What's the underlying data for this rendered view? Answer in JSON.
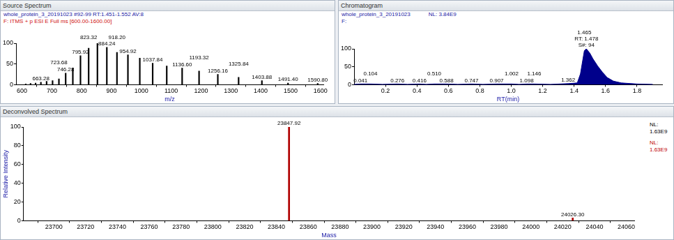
{
  "chart_data": [
    {
      "type": "bar",
      "title": "Source Spectrum",
      "subtitle": [
        [
          "whole_protein_3_20191023 #92-99 RT:1.451-1.552 AV:8"
        ],
        [
          "F: ITMS + p ESI E Full ms [600.00-1600.00]"
        ]
      ],
      "x_label": "m/z",
      "x": [
        612.5,
        628.6,
        645.5,
        663.28,
        682.4,
        702.4,
        723.68,
        746.28,
        770.3,
        795.92,
        823.32,
        852.7,
        884.24,
        918.2,
        954.92,
        994.7,
        1037.84,
        1085.0,
        1136.6,
        1193.32,
        1256.16,
        1325.84,
        1403.88,
        1491.4,
        1590.8
      ],
      "values": [
        2,
        3,
        4,
        6,
        8,
        10,
        14,
        28,
        40,
        70,
        88,
        100,
        90,
        78,
        72,
        64,
        52,
        45,
        40,
        33,
        25,
        18,
        10,
        4,
        3
      ],
      "peak_labels": [
        null,
        null,
        null,
        "663.28",
        null,
        null,
        "723.68",
        "746.28",
        null,
        "795.92",
        "823.32",
        null,
        "884.24",
        "918.20",
        "954.92",
        null,
        "1037.84",
        null,
        "1136.60",
        "1193.32",
        "1256.16",
        "1325.84",
        "1403.88",
        "1491.40",
        "1590.80"
      ],
      "color": "#000000",
      "xlim": [
        580,
        1610
      ],
      "xticks": [
        600,
        700,
        800,
        900,
        1000,
        1100,
        1200,
        1300,
        1400,
        1500,
        1600
      ],
      "ylim": [
        0,
        100
      ],
      "yticks": [
        0,
        50,
        100
      ],
      "grid": false
    },
    {
      "type": "line",
      "title": "Chromatogram",
      "subtitle": [
        [
          "whole_protein_3_20191023",
          "NL: 3.84E9"
        ],
        [
          "F:"
        ]
      ],
      "x_label": "RT(min)",
      "x": [
        0,
        0.041,
        0.104,
        0.18,
        0.276,
        0.34,
        0.416,
        0.46,
        0.51,
        0.588,
        0.66,
        0.747,
        0.82,
        0.907,
        1.002,
        1.05,
        1.098,
        1.146,
        1.25,
        1.362,
        1.42,
        1.44,
        1.465,
        1.478,
        1.5,
        1.52,
        1.55,
        1.58,
        1.61,
        1.65,
        1.7,
        1.8,
        1.9
      ],
      "values": [
        1,
        2,
        2,
        1,
        2,
        1,
        2,
        1,
        2,
        2,
        1,
        2,
        1,
        2,
        2,
        1,
        2,
        2,
        1,
        3,
        5,
        30,
        95,
        100,
        88,
        72,
        52,
        35,
        20,
        10,
        5,
        2,
        1
      ],
      "peak_labels": [
        null,
        "0.041",
        "0.104",
        null,
        "0.276",
        null,
        "0.416",
        null,
        "0.510",
        "0.588",
        null,
        "0.747",
        null,
        "0.907",
        "1.002",
        null,
        "1.098",
        "1.146",
        null,
        "1.362",
        null,
        null,
        "1.465",
        [
          "RT: 1.478",
          "S#: 94"
        ],
        null,
        null,
        null,
        null,
        null,
        null,
        null,
        null,
        null
      ],
      "color": "#00008b",
      "xlim": [
        0,
        1.96
      ],
      "xticks": [
        0.2,
        0.4,
        0.6,
        0.8,
        {
          "value": 1,
          "label": "1.0"
        },
        1.2,
        1.4,
        1.6,
        1.8
      ],
      "ylim": [
        0,
        100
      ],
      "yticks": [
        0,
        50,
        100
      ],
      "grid": false
    },
    {
      "type": "bar",
      "title": "Deconvolved Spectrum",
      "x_label": "Mass",
      "y_label": "Relative Intensity",
      "normalization_labels": [
        [
          "NL:",
          "1.63E9"
        ],
        [
          "NL:",
          "1.63E9"
        ]
      ],
      "x": [
        23847.92,
        24026.3
      ],
      "values": [
        100,
        3
      ],
      "peak_labels": [
        "23847.92",
        "24026.30"
      ],
      "color": "#b00000",
      "xlim": [
        23681,
        24065
      ],
      "xticks": [
        23700,
        23720,
        23740,
        23760,
        23780,
        23800,
        23820,
        23840,
        23860,
        23880,
        23900,
        23920,
        23940,
        23960,
        23980,
        24000,
        24020,
        24040,
        24060
      ],
      "ylim": [
        0,
        100
      ],
      "yticks": [
        0,
        20,
        40,
        60,
        80,
        100
      ],
      "grid": false
    }
  ]
}
